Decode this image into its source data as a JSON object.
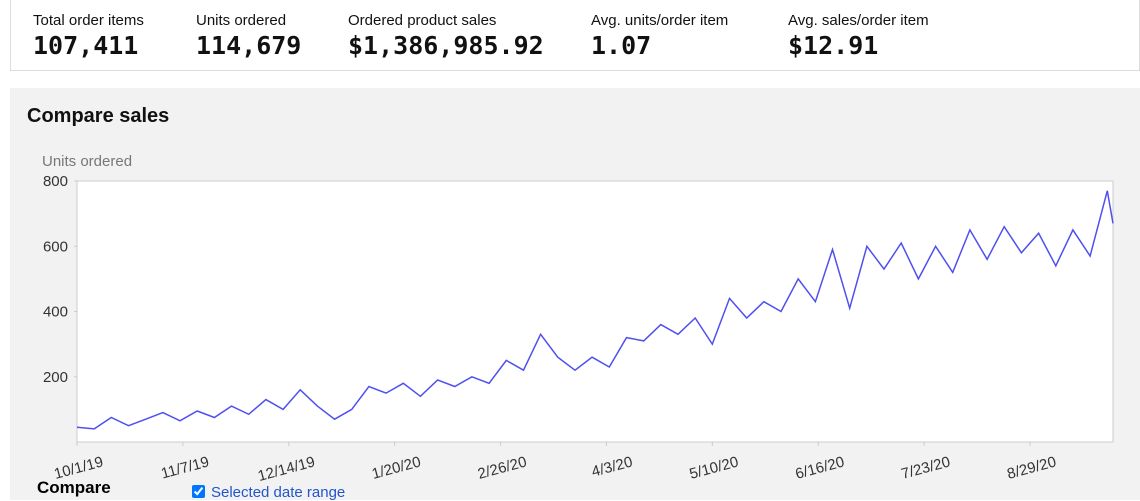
{
  "metrics": [
    {
      "label": "Total order items",
      "value": "107,411"
    },
    {
      "label": "Units ordered",
      "value": "114,679"
    },
    {
      "label": "Ordered product sales",
      "value": "$1,386,985.92"
    },
    {
      "label": "Avg. units/order item",
      "value": "1.07"
    },
    {
      "label": "Avg. sales/order item",
      "value": "$12.91"
    }
  ],
  "panel": {
    "title": "Compare sales"
  },
  "chart_data": {
    "type": "line",
    "y_label": "Units ordered",
    "color": "#4f4ff0",
    "grid": false,
    "x": [
      "10/1/19",
      "10/7/19",
      "10/13/19",
      "10/19/19",
      "10/25/19",
      "10/31/19",
      "11/6/19",
      "11/12/19",
      "11/18/19",
      "11/24/19",
      "11/30/19",
      "12/6/19",
      "12/12/19",
      "12/18/19",
      "12/24/19",
      "12/30/19",
      "1/5/20",
      "1/11/20",
      "1/17/20",
      "1/23/20",
      "1/29/20",
      "2/4/20",
      "2/10/20",
      "2/16/20",
      "2/22/20",
      "2/28/20",
      "3/5/20",
      "3/11/20",
      "3/17/20",
      "3/23/20",
      "3/29/20",
      "4/4/20",
      "4/10/20",
      "4/16/20",
      "4/22/20",
      "4/28/20",
      "5/4/20",
      "5/10/20",
      "5/16/20",
      "5/22/20",
      "5/28/20",
      "6/3/20",
      "6/9/20",
      "6/15/20",
      "6/21/20",
      "6/27/20",
      "7/3/20",
      "7/9/20",
      "7/15/20",
      "7/21/20",
      "7/27/20",
      "8/2/20",
      "8/8/20",
      "8/14/20",
      "8/20/20",
      "8/26/20",
      "9/1/20",
      "9/7/20",
      "9/13/20",
      "9/19/20",
      "9/25/20",
      "9/27/20"
    ],
    "values": [
      45,
      40,
      75,
      50,
      70,
      90,
      65,
      95,
      75,
      110,
      85,
      130,
      100,
      160,
      110,
      70,
      100,
      170,
      150,
      180,
      140,
      190,
      170,
      200,
      180,
      250,
      220,
      330,
      260,
      220,
      260,
      230,
      320,
      310,
      360,
      330,
      380,
      300,
      440,
      380,
      430,
      400,
      500,
      430,
      590,
      410,
      600,
      530,
      610,
      500,
      600,
      520,
      650,
      560,
      660,
      580,
      640,
      540,
      650,
      570,
      770,
      670
    ],
    "xlim": [
      "10/1/19",
      "9/27/20"
    ],
    "xticks": [
      "10/1/19",
      "11/7/19",
      "12/14/19",
      "1/20/20",
      "2/26/20",
      "4/3/20",
      "5/10/20",
      "6/16/20",
      "7/23/20",
      "8/29/20"
    ],
    "ylim": [
      0,
      800
    ],
    "yticks": [
      200,
      400,
      600,
      800
    ]
  },
  "compare": {
    "title": "Compare",
    "option": "Selected date range"
  }
}
